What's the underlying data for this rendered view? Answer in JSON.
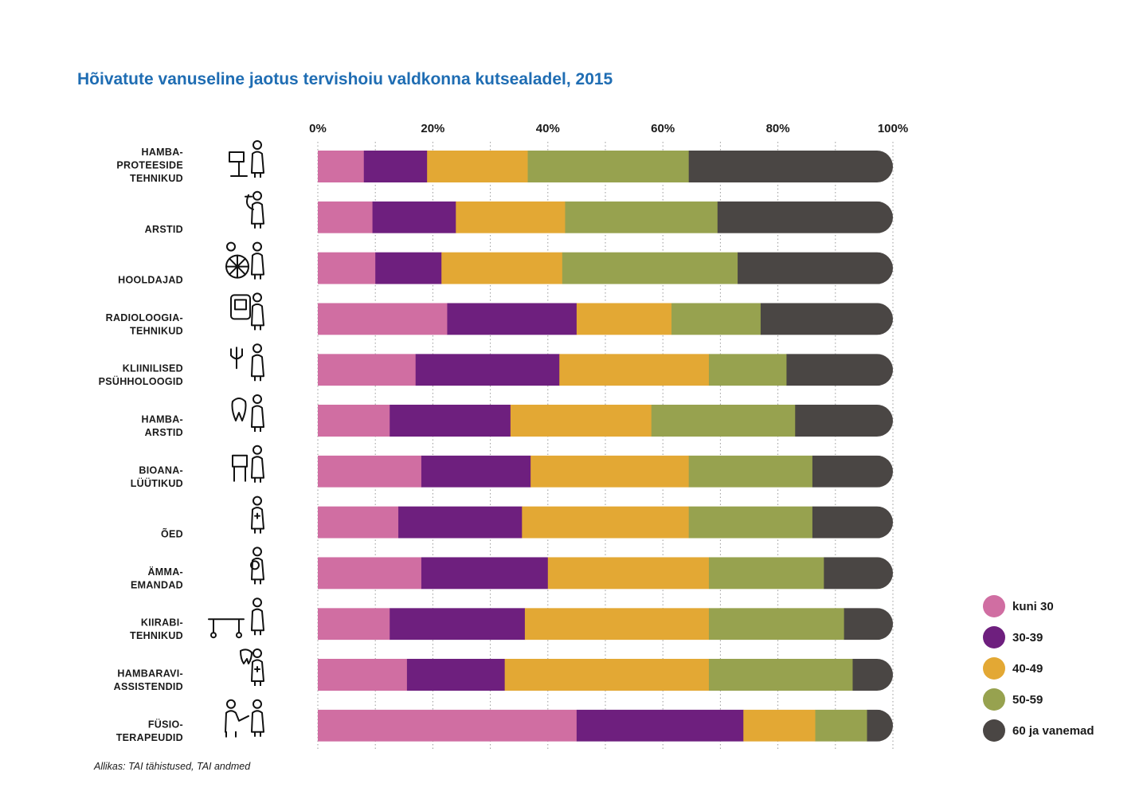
{
  "chart_data": {
    "type": "bar",
    "orientation": "horizontal",
    "stacked": true,
    "title": "Hõivatute vanuseline jaotus tervishoiu valdkonna kutsealadel, 2015",
    "xlim": [
      0,
      100
    ],
    "x_ticks": [
      "0%",
      "20%",
      "40%",
      "60%",
      "80%",
      "100%"
    ],
    "grid": "vertical dotted lines every 10%",
    "legend_position": "bottom-right",
    "categories": [
      [
        "HAMBA-",
        "PROTEESIDE",
        "TEHNIKUD"
      ],
      [
        "ARSTID"
      ],
      [
        "HOOLDAJAD"
      ],
      [
        "RADIOLOOGIA-",
        "TEHNIKUD"
      ],
      [
        "KLIINILISED",
        "PSÜHHOLOOGID"
      ],
      [
        "HAMBA-",
        "ARSTID"
      ],
      [
        "BIOANA-",
        "LÜÜTIKUD"
      ],
      [
        "ÕED"
      ],
      [
        "ÄMMA-",
        "EMANDAD"
      ],
      [
        "KIIRABI-",
        "TEHNIKUD"
      ],
      [
        "HAMBARAVI-",
        "ASSISTENDID"
      ],
      [
        "FÜSIO-",
        "TERAPEUDID"
      ]
    ],
    "icons": [
      "dental-technician-icon",
      "doctor-icon",
      "caregiver-wheelchair-icon",
      "radiology-technician-icon",
      "psychologist-icon",
      "dentist-icon",
      "bioanalyst-icon",
      "nurse-icon",
      "midwife-icon",
      "paramedic-stretcher-icon",
      "dental-assistant-icon",
      "physiotherapist-icon"
    ],
    "series": [
      {
        "name": "kuni 30",
        "color": "#d06ea2",
        "values": [
          8.0,
          9.5,
          10.0,
          22.5,
          17.0,
          12.5,
          18.0,
          14.0,
          18.0,
          12.5,
          15.5,
          45.0
        ]
      },
      {
        "name": "30-39",
        "color": "#6e1f7e",
        "values": [
          11.0,
          14.5,
          11.5,
          22.5,
          25.0,
          21.0,
          19.0,
          21.5,
          22.0,
          23.5,
          17.0,
          29.0
        ]
      },
      {
        "name": "40-49",
        "color": "#e3a834",
        "values": [
          17.5,
          19.0,
          21.0,
          16.5,
          26.0,
          24.5,
          27.5,
          29.0,
          28.0,
          32.0,
          35.5,
          12.5
        ]
      },
      {
        "name": "50-59",
        "color": "#97a24f",
        "values": [
          28.0,
          26.5,
          30.5,
          15.5,
          13.5,
          25.0,
          21.5,
          21.5,
          20.0,
          23.5,
          25.0,
          9.0
        ]
      },
      {
        "name": "60 ja vanemad",
        "color": "#4a4644",
        "values": [
          35.5,
          30.5,
          27.0,
          23.0,
          18.5,
          17.0,
          14.0,
          14.0,
          12.0,
          8.5,
          7.0,
          4.5
        ]
      }
    ],
    "source": "Allikas: TAI tähistused, TAI andmed"
  }
}
